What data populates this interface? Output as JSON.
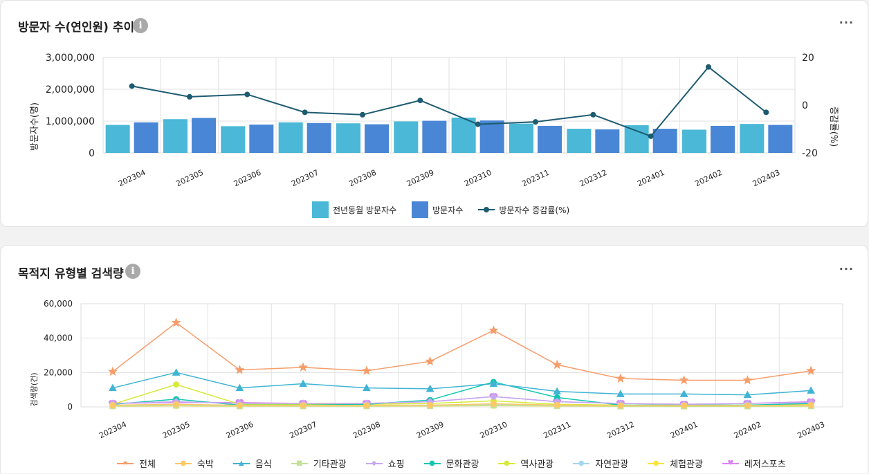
{
  "cards": {
    "visitors": {
      "title": "방문자 수(연인원) 추이",
      "info": "i",
      "more": "···"
    },
    "search": {
      "title": "목적지 유형별 검색량",
      "info": "i",
      "more": "···"
    }
  },
  "chart_data": [
    {
      "type": "bar",
      "categories": [
        "202304",
        "202305",
        "202306",
        "202307",
        "202308",
        "202309",
        "202310",
        "202311",
        "202312",
        "202401",
        "202402",
        "202403"
      ],
      "ylabel": "방문자수(명)",
      "y2label": "증감률(%)",
      "ylim": [
        0,
        3000000
      ],
      "y2lim": [
        -20,
        20
      ],
      "yticks": [
        "3,000,000",
        "2,000,000",
        "1,000,000",
        "0"
      ],
      "y2ticks": [
        "20",
        "0",
        "-20"
      ],
      "grid": true,
      "legend_position": "bottom",
      "series": [
        {
          "name": "전년동월 방문자수",
          "kind": "bar",
          "color": "#4ab8d6",
          "values": [
            880000,
            1060000,
            840000,
            960000,
            930000,
            990000,
            1110000,
            920000,
            760000,
            870000,
            730000,
            910000
          ]
        },
        {
          "name": "방문자수",
          "kind": "bar",
          "color": "#4a86d6",
          "values": [
            960000,
            1100000,
            890000,
            940000,
            900000,
            1010000,
            1020000,
            850000,
            740000,
            760000,
            850000,
            880000
          ]
        },
        {
          "name": "방문자수 증감률(%)",
          "kind": "line",
          "axis": "right",
          "color": "#1d5b70",
          "values": [
            8,
            3.5,
            4.5,
            -3,
            -4,
            2,
            -8,
            -7,
            -4,
            -13,
            16,
            -3
          ]
        }
      ]
    },
    {
      "type": "line",
      "categories": [
        "202304",
        "202305",
        "202306",
        "202307",
        "202308",
        "202309",
        "202310",
        "202311",
        "202312",
        "202401",
        "202402",
        "202403"
      ],
      "ylabel": "검색량(건)",
      "ylim": [
        0,
        60000
      ],
      "yticks": [
        "60,000",
        "40,000",
        "20,000",
        "0"
      ],
      "grid": true,
      "legend_position": "bottom",
      "series": [
        {
          "name": "전체",
          "color": "#f79d6a",
          "marker": "star",
          "values": [
            20500,
            49000,
            21500,
            23000,
            21000,
            26500,
            44500,
            24500,
            16500,
            15500,
            15500,
            21000
          ]
        },
        {
          "name": "숙박",
          "color": "#ffc867",
          "marker": "circle",
          "values": [
            1000,
            1500,
            900,
            900,
            900,
            1000,
            1800,
            1100,
            800,
            800,
            800,
            1000
          ]
        },
        {
          "name": "음식",
          "color": "#40b4d4",
          "marker": "triangle",
          "values": [
            11000,
            20000,
            11000,
            13500,
            11000,
            10500,
            13500,
            9000,
            7500,
            7500,
            7000,
            9500
          ]
        },
        {
          "name": "기타관광",
          "color": "#c2e29a",
          "marker": "square",
          "values": [
            500,
            800,
            500,
            500,
            500,
            600,
            900,
            600,
            400,
            400,
            400,
            500
          ]
        },
        {
          "name": "쇼핑",
          "color": "#c6a9f0",
          "marker": "diamond",
          "values": [
            2000,
            3000,
            2000,
            2000,
            2000,
            3000,
            6000,
            3000,
            2000,
            1500,
            2000,
            2500
          ]
        },
        {
          "name": "문화관광",
          "color": "#12c6b2",
          "marker": "circle",
          "values": [
            1500,
            4500,
            1000,
            1000,
            1500,
            4000,
            14500,
            5500,
            1000,
            1000,
            1000,
            2000
          ]
        },
        {
          "name": "역사관광",
          "color": "#d6ea3a",
          "marker": "circle",
          "values": [
            1500,
            13000,
            1500,
            1500,
            1500,
            2000,
            3500,
            1500,
            1000,
            1000,
            1000,
            1500
          ]
        },
        {
          "name": "자연관광",
          "color": "#a5d8ec",
          "marker": "circle",
          "values": [
            800,
            1500,
            800,
            800,
            800,
            1000,
            1500,
            1000,
            700,
            700,
            700,
            800
          ]
        },
        {
          "name": "체험관광",
          "color": "#ffe33b",
          "marker": "circle",
          "values": [
            400,
            600,
            400,
            400,
            400,
            500,
            700,
            500,
            300,
            300,
            300,
            400
          ]
        },
        {
          "name": "레저스포츠",
          "color": "#d984f0",
          "marker": "heart",
          "values": [
            2000,
            2500,
            2500,
            2000,
            2000,
            3000,
            6000,
            3000,
            2000,
            1500,
            2000,
            3000
          ]
        }
      ]
    }
  ]
}
